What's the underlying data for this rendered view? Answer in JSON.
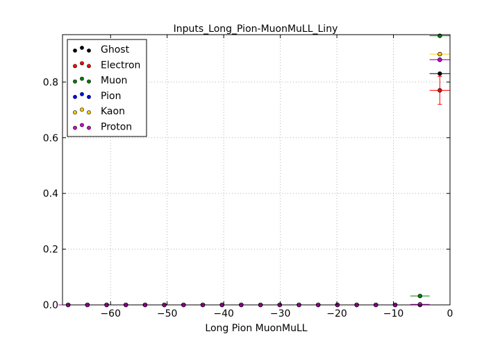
{
  "chart_data": {
    "type": "scatter",
    "title": "Inputs_Long_Pion-MuonMuLL_Liny",
    "xlabel": "Long Pion MuonMuLL",
    "ylabel": "",
    "xlim": [
      -68.5,
      0
    ],
    "ylim": [
      0,
      0.97
    ],
    "xticks": [
      -60,
      -50,
      -40,
      -30,
      -20,
      -10,
      0
    ],
    "xtick_labels": [
      "−60",
      "−50",
      "−40",
      "−30",
      "−20",
      "−10",
      "0"
    ],
    "yticks": [
      0.0,
      0.2,
      0.4,
      0.6,
      0.8
    ],
    "ytick_labels": [
      "0.0",
      "0.2",
      "0.4",
      "0.6",
      "0.8"
    ],
    "grid": true,
    "legend_position": "top-left",
    "zero_points_x": [
      -67.5,
      -64.1,
      -60.7,
      -57.3,
      -53.9,
      -50.5,
      -47.1,
      -43.7,
      -40.3,
      -36.9,
      -33.5,
      -30.1,
      -26.7,
      -23.3,
      -19.9,
      -16.5,
      -13.1,
      -9.7
    ],
    "zero_points_xerr": 1.7,
    "series": [
      {
        "name": "Ghost",
        "color": "#000000",
        "points": [
          {
            "x": -5.3,
            "xerr": 1.7,
            "y": 0.0,
            "yerr": 0.0
          },
          {
            "x": -1.8,
            "xerr": 1.8,
            "y": 0.83,
            "yerr": 0.0
          }
        ]
      },
      {
        "name": "Electron",
        "color": "#ff0000",
        "points": [
          {
            "x": -5.3,
            "xerr": 1.7,
            "y": 0.0,
            "yerr": 0.0
          },
          {
            "x": -1.8,
            "xerr": 1.8,
            "y": 0.77,
            "yerr": 0.05
          }
        ]
      },
      {
        "name": "Muon",
        "color": "#008000",
        "points": [
          {
            "x": -5.3,
            "xerr": 1.7,
            "y": 0.032,
            "yerr": 0.0
          },
          {
            "x": -1.8,
            "xerr": 1.8,
            "y": 0.966,
            "yerr": 0.0
          }
        ]
      },
      {
        "name": "Pion",
        "color": "#0000ff",
        "points": [
          {
            "x": -5.3,
            "xerr": 1.7,
            "y": 0.0,
            "yerr": 0.0
          },
          {
            "x": -1.8,
            "xerr": 1.8,
            "y": 0.88,
            "yerr": 0.0
          }
        ]
      },
      {
        "name": "Kaon",
        "color": "#ffcc00",
        "points": [
          {
            "x": -5.3,
            "xerr": 1.7,
            "y": 0.0,
            "yerr": 0.0
          },
          {
            "x": -1.8,
            "xerr": 1.8,
            "y": 0.9,
            "yerr": 0.0
          }
        ]
      },
      {
        "name": "Proton",
        "color": "#cc00cc",
        "points": [
          {
            "x": -5.3,
            "xerr": 1.7,
            "y": 0.002,
            "yerr": 0.0
          },
          {
            "x": -1.8,
            "xerr": 1.8,
            "y": 0.88,
            "yerr": 0.0
          }
        ]
      }
    ]
  }
}
